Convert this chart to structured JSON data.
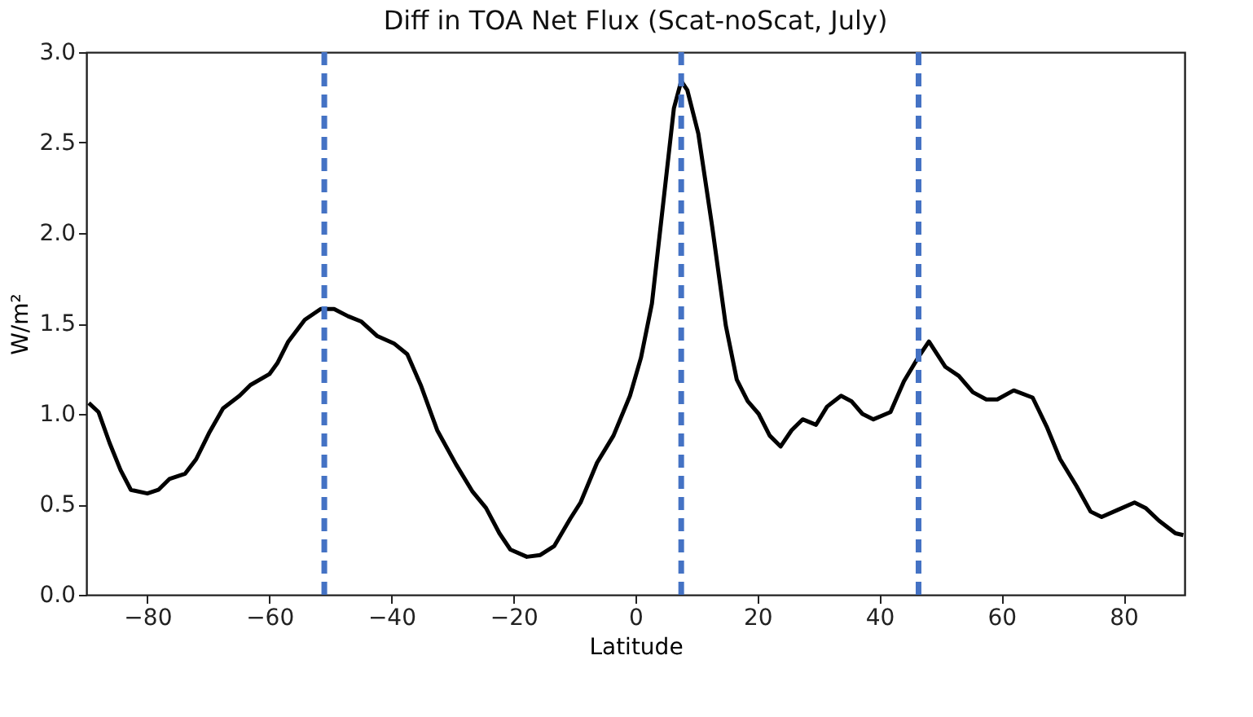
{
  "chart_data": {
    "type": "line",
    "title": "Diff in TOA Net Flux (Scat-noScat, July)",
    "xlabel": "Latitude",
    "ylabel": "W/m²",
    "x": [
      -89.6,
      -88,
      -86.2,
      -84.4,
      -82.7,
      -80,
      -78.2,
      -76.4,
      -73.8,
      -72,
      -69.8,
      -67.6,
      -64.9,
      -63.1,
      -60,
      -58.7,
      -56.9,
      -54.2,
      -51.6,
      -49.4,
      -47.1,
      -44.9,
      -42.3,
      -39.6,
      -37.4,
      -35.2,
      -32.5,
      -29.4,
      -26.7,
      -24.5,
      -22.3,
      -20.5,
      -17.8,
      -15.6,
      -13.3,
      -10.7,
      -9,
      -6.3,
      -3.6,
      -0.9,
      0.9,
      2.7,
      4.5,
      6.3,
      7.5,
      8.5,
      10.3,
      12.6,
      14.8,
      16.6,
      18.4,
      20.2,
      22,
      23.8,
      25.6,
      27.4,
      29.6,
      31.4,
      33.7,
      35.4,
      37.2,
      39,
      41.8,
      44,
      46.3,
      48.1,
      50.8,
      53,
      55.3,
      57.5,
      59.3,
      62,
      65.1,
      67.4,
      69.6,
      72.3,
      74.6,
      76.4,
      79.1,
      81.8,
      83.6,
      85.8,
      88.5,
      89.8
    ],
    "series": [
      {
        "color": "#000000",
        "values": [
          1.06,
          1.01,
          0.84,
          0.69,
          0.58,
          0.56,
          0.58,
          0.64,
          0.67,
          0.75,
          0.9,
          1.03,
          1.1,
          1.16,
          1.22,
          1.28,
          1.4,
          1.52,
          1.58,
          1.58,
          1.54,
          1.51,
          1.43,
          1.39,
          1.33,
          1.16,
          0.91,
          0.72,
          0.57,
          0.48,
          0.34,
          0.25,
          0.21,
          0.22,
          0.27,
          0.42,
          0.51,
          0.73,
          0.88,
          1.1,
          1.31,
          1.61,
          2.15,
          2.69,
          2.84,
          2.79,
          2.55,
          2.03,
          1.49,
          1.19,
          1.07,
          1.0,
          0.88,
          0.82,
          0.91,
          0.97,
          0.94,
          1.04,
          1.1,
          1.07,
          1.0,
          0.97,
          1.01,
          1.18,
          1.31,
          1.4,
          1.26,
          1.21,
          1.12,
          1.08,
          1.08,
          1.13,
          1.09,
          0.93,
          0.75,
          0.6,
          0.46,
          0.43,
          0.47,
          0.51,
          0.48,
          0.41,
          0.34,
          0.33
        ]
      }
    ],
    "xlim": [
      -90,
      90
    ],
    "xticks": [
      -80,
      -60,
      -40,
      -20,
      0,
      20,
      40,
      60,
      80
    ],
    "ylim": [
      0,
      3.0
    ],
    "yticks": [
      {
        "value": 0,
        "label": "0.0"
      },
      {
        "value": 0.5,
        "label": "0.5"
      },
      {
        "value": 1,
        "label": "1.0"
      },
      {
        "value": 1.5,
        "label": "1.5"
      },
      {
        "value": 2,
        "label": "2.0"
      },
      {
        "value": 2.5,
        "label": "2.5"
      },
      {
        "value": 3,
        "label": "3.0"
      }
    ],
    "ref_lines": [
      {
        "axis": "x",
        "value": -51,
        "color": "#4472c4",
        "line_style": "dashed"
      },
      {
        "axis": "x",
        "value": 7.5,
        "color": "#4472c4",
        "line_style": "dashed"
      },
      {
        "axis": "x",
        "value": 46.4,
        "color": "#4472c4",
        "line_style": "dashed"
      }
    ],
    "grid": false,
    "line_style": "solid",
    "marker": "none"
  }
}
